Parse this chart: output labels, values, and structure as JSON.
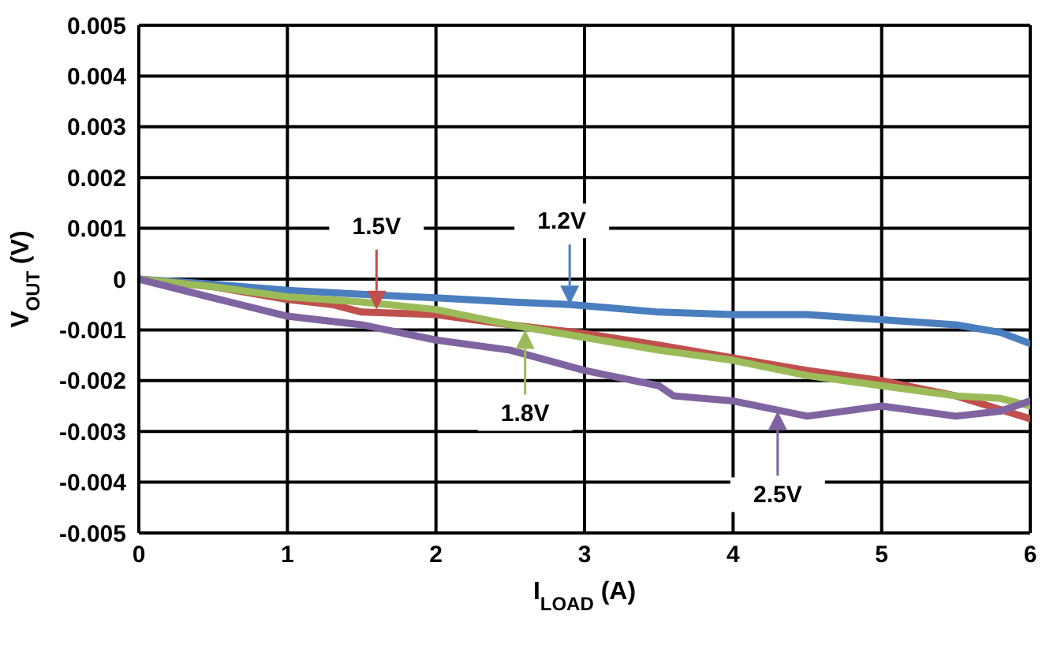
{
  "chart_data": {
    "type": "line",
    "xlabel": "I$_{LOAD}$ (A)",
    "ylabel": "V$_{OUT}$ (V)",
    "xlim": [
      0,
      6
    ],
    "xticks": [
      0,
      1,
      2,
      3,
      4,
      5,
      6
    ],
    "ylim": [
      -0.005,
      0.005
    ],
    "yticks": [
      -0.005,
      -0.004,
      -0.003,
      -0.002,
      -0.001,
      0,
      0.001,
      0.002,
      0.003,
      0.004,
      0.005
    ],
    "grid": true,
    "marker": "none",
    "line_style": "solid",
    "series": [
      {
        "color": "#4a7ebf",
        "x": [
          0,
          0.5,
          1,
          1.5,
          2,
          2.5,
          2.9,
          3.5,
          4,
          4.5,
          5,
          5.5,
          5.8,
          6
        ],
        "values": [
          0,
          -0.0001,
          -0.00022,
          -0.0003,
          -0.00037,
          -0.00045,
          -0.0005,
          -0.00065,
          -0.0007,
          -0.0007,
          -0.0008,
          -0.0009,
          -0.00105,
          -0.00127
        ]
      },
      {
        "color": "#c0504d",
        "x": [
          0,
          0.5,
          1,
          1.3,
          1.5,
          2,
          2.5,
          3,
          3.5,
          4,
          4.5,
          5,
          5.5,
          6
        ],
        "values": [
          0,
          -0.00015,
          -0.0004,
          -0.0005,
          -0.00065,
          -0.0007,
          -0.0009,
          -0.00107,
          -0.0013,
          -0.00155,
          -0.0018,
          -0.002,
          -0.0023,
          -0.00275
        ]
      },
      {
        "color": "#9bbb59",
        "x": [
          0,
          0.5,
          1,
          1.5,
          2,
          2.5,
          3,
          3.5,
          4,
          4.5,
          5,
          5.5,
          5.8,
          6
        ],
        "values": [
          0,
          -0.00015,
          -0.00035,
          -0.00045,
          -0.0006,
          -0.0009,
          -0.00115,
          -0.0014,
          -0.0016,
          -0.0019,
          -0.0021,
          -0.0023,
          -0.00235,
          -0.0025
        ]
      },
      {
        "color": "#8064a2",
        "x": [
          0,
          0.5,
          1,
          1.5,
          2,
          2.5,
          3,
          3.5,
          3.6,
          4,
          4.5,
          5,
          5.5,
          5.8,
          6
        ],
        "values": [
          0,
          -0.00037,
          -0.00073,
          -0.0009,
          -0.0012,
          -0.0014,
          -0.0018,
          -0.0021,
          -0.0023,
          -0.0024,
          -0.0027,
          -0.0025,
          -0.0027,
          -0.0026,
          -0.0024
        ]
      }
    ],
    "annotations": [
      {
        "text": "1.2V",
        "x": 2.9,
        "y": -0.0005
      },
      {
        "text": "1.5V",
        "x": 1.6,
        "y": -0.0006
      },
      {
        "text": "1.8V",
        "x": 2.6,
        "y": -0.001
      },
      {
        "text": "2.5V",
        "x": 4.3,
        "y": -0.0026
      }
    ]
  }
}
